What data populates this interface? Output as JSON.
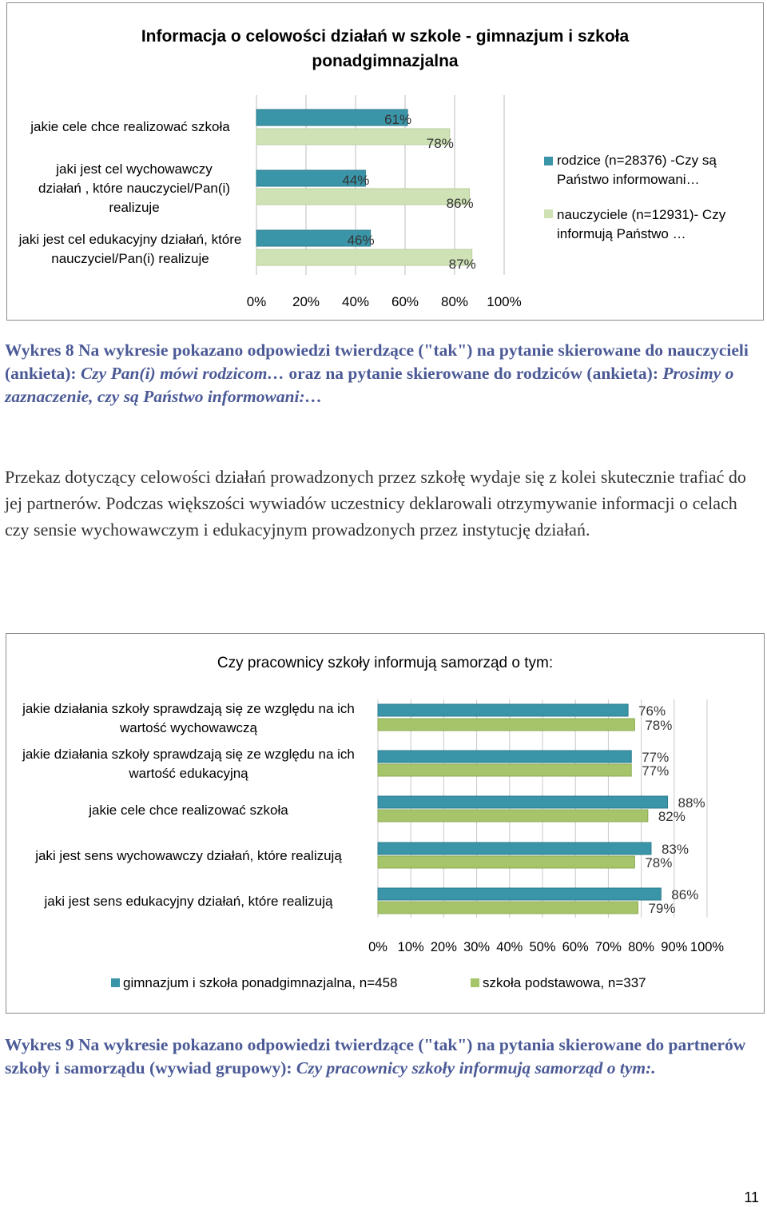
{
  "charts": [
    {
      "title": "Informacja o celowości działań w szkole - gimnazjum i szkoła ponadgimnazjalna",
      "legend": [
        {
          "label": "rodzice (n=28376) -Czy są Państwo informowani…",
          "color": "#3a95a8"
        },
        {
          "label": "nauczyciele (n=12931)- Czy informują Państwo …",
          "color": "#cfe2b6"
        }
      ]
    },
    {
      "title": "Czy pracownicy szkoły informują samorząd o tym:",
      "legend": [
        {
          "label": "gimnazjum i szkoła ponadgimnazjalna, n=458",
          "color": "#3a95a8"
        },
        {
          "label": "szkoła podstawowa, n=337",
          "color": "#a6c46a"
        }
      ]
    }
  ],
  "chart_data": [
    {
      "type": "bar",
      "orientation": "horizontal",
      "title": "Informacja o celowości działań w szkole - gimnazjum i szkoła ponadgimnazjalna",
      "categories": [
        "jakie cele chce realizować szkoła",
        "jaki jest cel wychowawczy działań , które nauczyciel/Pan(i) realizuje",
        "jaki jest cel edukacyjny działań, które nauczyciel/Pan(i) realizuje"
      ],
      "series": [
        {
          "name": "rodzice (n=28376) -Czy są Państwo informowani…",
          "values": [
            61,
            44,
            46
          ],
          "labels": [
            "61%",
            "44%",
            "46%"
          ]
        },
        {
          "name": "nauczyciele (n=12931)- Czy informują Państwo …",
          "values": [
            78,
            86,
            87
          ],
          "labels": [
            "78%",
            "86%",
            "87%"
          ]
        }
      ],
      "xlim": [
        0,
        100
      ],
      "xticks": [
        "0%",
        "20%",
        "40%",
        "60%",
        "80%",
        "100%"
      ],
      "legend_position": "right"
    },
    {
      "type": "bar",
      "orientation": "horizontal",
      "title": "Czy pracownicy szkoły informują samorząd o tym:",
      "categories": [
        "jakie działania szkoły sprawdzają się ze względu na ich wartość wychowawczą",
        "jakie działania szkoły sprawdzają się ze względu na ich wartość edukacyjną",
        "jakie cele chce realizować szkoła",
        "jaki jest sens wychowawczy działań, które realizują",
        "jaki jest sens edukacyjny działań, które realizują"
      ],
      "series": [
        {
          "name": "gimnazjum i szkoła ponadgimnazjalna, n=458",
          "values": [
            76,
            77,
            88,
            83,
            86
          ],
          "labels": [
            "76%",
            "77%",
            "88%",
            "83%",
            "86%"
          ]
        },
        {
          "name": "szkoła podstawowa, n=337",
          "values": [
            78,
            77,
            82,
            78,
            79
          ],
          "labels": [
            "78%",
            "77%",
            "82%",
            "78%",
            "79%"
          ]
        }
      ],
      "xlim": [
        0,
        100
      ],
      "xticks": [
        "0%",
        "10%",
        "20%",
        "30%",
        "40%",
        "50%",
        "60%",
        "70%",
        "80%",
        "90%",
        "100%"
      ],
      "legend_position": "bottom"
    }
  ],
  "caption1": {
    "prefix": "Wykres 8 Na wykresie pokazano odpowiedzi twierdzące (\"tak\") na pytanie skierowane do nauczycieli (ankieta): ",
    "q1": "Czy Pan(i) mówi rodzicom…",
    "middle": " oraz na pytanie skierowane do rodziców (ankieta): ",
    "q2": "Prosimy o zaznaczenie, czy są Państwo informowani:…"
  },
  "paragraph": "Przekaz dotyczący celowości działań prowadzonych przez szkołę wydaje się z kolei skutecznie trafiać do jej partnerów. Podczas większości wywiadów uczestnicy deklarowali otrzymywanie informacji o celach czy sensie wychowawczym i edukacyjnym prowadzonych przez instytucję działań.",
  "caption2": {
    "prefix": "Wykres 9  Na wykresie pokazano odpowiedzi twierdzące (\"tak\") na pytania skierowane do partnerów szkoły i samorządu (wywiad grupowy): ",
    "q": "Czy pracownicy szkoły informują samorząd o tym:."
  },
  "page_number": "11"
}
